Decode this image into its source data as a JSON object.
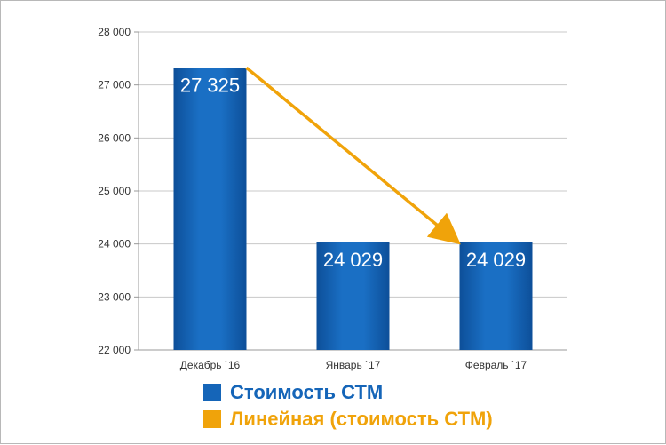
{
  "chart_data": {
    "type": "bar",
    "categories": [
      "Декабрь `16",
      "Январь `17",
      "Февраль `17"
    ],
    "series": [
      {
        "name": "Стоимость СТМ",
        "values": [
          27325,
          24029,
          24029
        ],
        "value_labels": [
          "27 325",
          "24 029",
          "24 029"
        ],
        "color": "#1565b8"
      }
    ],
    "trendline": {
      "name": "Линейная (стоимость СТМ)",
      "from_value": 27325,
      "to_value": 24029,
      "color": "#f0a30a"
    },
    "ylim": [
      22000,
      28000
    ],
    "yticks": [
      22000,
      23000,
      24000,
      25000,
      26000,
      27000,
      28000
    ],
    "ytick_labels": [
      "22 000",
      "23 000",
      "24 000",
      "25 000",
      "26 000",
      "27 000",
      "28 000"
    ],
    "grid": true,
    "legend_position": "bottom",
    "title": "",
    "xlabel": "",
    "ylabel": ""
  },
  "legend": {
    "items": [
      {
        "label": "Стоимость СТМ",
        "color": "#1565b8",
        "text_color": "#1565b8"
      },
      {
        "label": "Линейная (стоимость СТМ)",
        "color": "#f0a30a",
        "text_color": "#f0a30a"
      }
    ]
  }
}
